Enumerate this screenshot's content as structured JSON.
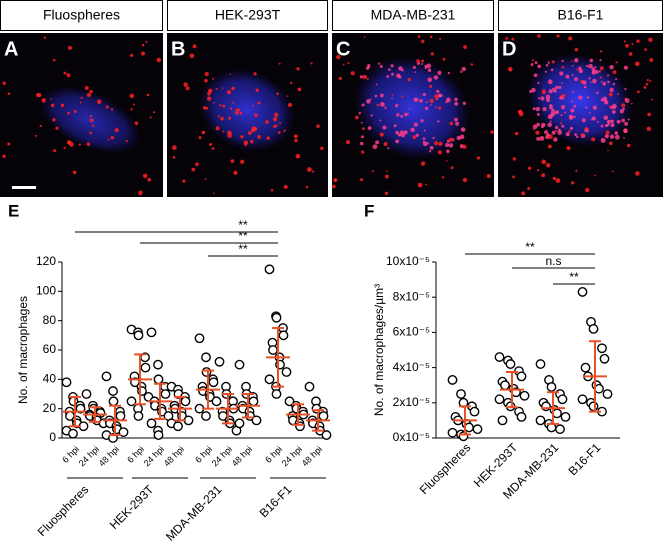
{
  "panels": [
    {
      "letter": "A",
      "label": "Fluospheres"
    },
    {
      "letter": "B",
      "label": "HEK-293T"
    },
    {
      "letter": "C",
      "label": "MDA-MB-231"
    },
    {
      "letter": "D",
      "label": "B16-F1"
    }
  ],
  "chart_data": [
    {
      "type": "dotplot",
      "panel": "E",
      "ylabel": "No. of macrophages",
      "ylim": [
        0,
        120
      ],
      "yticks": [
        0,
        20,
        40,
        60,
        80,
        100,
        120
      ],
      "categories": [
        "6 hpi",
        "24 hpi",
        "48 hpi",
        "6 hpi",
        "24 hpi",
        "48 hpi",
        "6 hpi",
        "24 hpi",
        "48 hpi",
        "6 hpi",
        "24 hpi",
        "48 hpi"
      ],
      "group_labels": [
        "Fluospheres",
        "HEK-293T",
        "MDA-MB-231",
        "B16-F1"
      ],
      "values": [
        [
          38,
          28,
          25,
          22,
          20,
          18,
          15,
          12,
          10,
          8,
          5,
          3
        ],
        [
          30,
          22,
          20,
          18,
          17,
          16,
          15,
          14,
          12,
          10
        ],
        [
          42,
          32,
          25,
          18,
          15,
          12,
          10,
          8,
          6,
          4,
          2,
          0
        ],
        [
          74,
          72,
          70,
          55,
          48,
          42,
          38,
          35,
          32,
          28,
          25,
          20,
          15
        ],
        [
          72,
          50,
          40,
          35,
          30,
          25,
          22,
          20,
          18,
          15,
          10,
          5,
          2
        ],
        [
          35,
          33,
          30,
          28,
          25,
          22,
          20,
          18,
          15,
          12,
          10,
          8
        ],
        [
          68,
          55,
          45,
          40,
          38,
          35,
          32,
          30,
          28,
          25,
          20,
          15
        ],
        [
          52,
          35,
          30,
          25,
          20,
          18,
          15,
          12,
          10,
          5
        ],
        [
          50,
          35,
          30,
          28,
          25,
          22,
          20,
          18,
          15,
          12,
          10
        ],
        [
          115,
          83,
          82,
          75,
          70,
          65,
          60,
          55,
          50,
          45,
          40,
          35,
          30
        ],
        [
          25,
          22,
          20,
          18,
          16,
          15,
          12,
          10,
          8
        ],
        [
          35,
          25,
          20,
          18,
          15,
          12,
          10,
          8,
          5,
          2
        ]
      ],
      "means": [
        18,
        16,
        12,
        40,
        25,
        20,
        33,
        20,
        22,
        55,
        16,
        12
      ],
      "sds": [
        10,
        5,
        10,
        17,
        12,
        8,
        13,
        10,
        8,
        20,
        7,
        7
      ],
      "color": "#e8502a",
      "significance": [
        "**",
        "**",
        "**"
      ]
    },
    {
      "type": "dotplot",
      "panel": "F",
      "ylabel": "No. of macrophages/µm³",
      "ylim": [
        0,
        0.0001
      ],
      "yticks": [
        {
          "value": 0,
          "label": "0x10⁻⁵"
        },
        {
          "value": 2e-05,
          "label": "2x10⁻⁵"
        },
        {
          "value": 4e-05,
          "label": "4x10⁻⁵"
        },
        {
          "value": 6e-05,
          "label": "6x10⁻⁵"
        },
        {
          "value": 8e-05,
          "label": "8x10⁻⁵"
        },
        {
          "value": 0.0001,
          "label": "10x10⁻⁵"
        }
      ],
      "categories": [
        "Fluospheres",
        "HEK-293T",
        "MDA-MB-231",
        "B16-F1"
      ],
      "values": [
        [
          3.3e-05,
          2.5e-05,
          2e-05,
          1.8e-05,
          1.5e-05,
          1.2e-05,
          1e-05,
          8e-06,
          6e-06,
          5e-06,
          3e-06,
          2e-06,
          1e-06
        ],
        [
          4.6e-05,
          4.4e-05,
          4.2e-05,
          3.8e-05,
          3.5e-05,
          3.2e-05,
          3e-05,
          2.8e-05,
          2.6e-05,
          2.4e-05,
          2.2e-05,
          2e-05,
          1.8e-05,
          1.5e-05,
          1.2e-05,
          1e-05
        ],
        [
          4.2e-05,
          3.3e-05,
          2.9e-05,
          2.5e-05,
          2.2e-05,
          2e-05,
          1.8e-05,
          1.6e-05,
          1.4e-05,
          1.2e-05,
          1e-05,
          8e-06,
          6e-06,
          5e-06
        ],
        [
          8.3e-05,
          6.6e-05,
          6.2e-05,
          5.1e-05,
          4.5e-05,
          4e-05,
          3.5e-05,
          3e-05,
          2.8e-05,
          2.5e-05,
          2.2e-05,
          2e-05,
          1.8e-05,
          1.5e-05
        ]
      ],
      "means": [
        1e-05,
        2.75e-05,
        1.7e-05,
        3.5e-05
      ],
      "sds": [
        8e-06,
        1e-05,
        9e-06,
        2e-05
      ],
      "color": "#e8502a",
      "significance": [
        "**",
        "n.s",
        "**"
      ]
    }
  ]
}
